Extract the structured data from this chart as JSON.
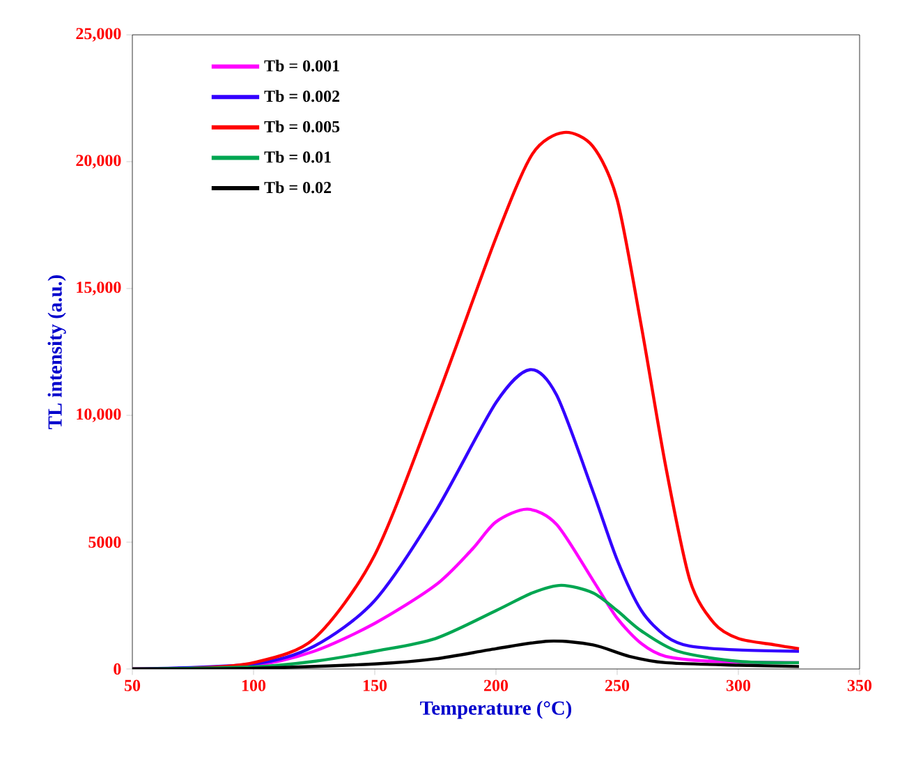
{
  "chart_data": {
    "type": "line",
    "xlabel": "Temperature (°C)",
    "ylabel": "TL intensity (a.u.)",
    "xlim": [
      50,
      350
    ],
    "ylim": [
      0,
      25000
    ],
    "xticks": [
      50,
      100,
      150,
      200,
      250,
      300,
      350
    ],
    "yticks": [
      0,
      5000,
      {
        "value": 10000,
        "label": "10,000"
      },
      {
        "value": 15000,
        "label": "15,000"
      },
      {
        "value": 20000,
        "label": "20,000"
      },
      {
        "value": 25000,
        "label": "25,000"
      }
    ],
    "legend": "top left",
    "grid": false,
    "marker": "none",
    "line_style": "solid",
    "series": [
      {
        "name": "Tb = 0.001",
        "color": "#ff00ff",
        "x": [
          50,
          100,
          125,
          150,
          175,
          190,
          200,
          213,
          225,
          240,
          250,
          260,
          270,
          290,
          325
        ],
        "values": [
          0,
          150,
          700,
          1800,
          3300,
          4700,
          5800,
          6300,
          5700,
          3500,
          2000,
          1000,
          500,
          300,
          250
        ]
      },
      {
        "name": "Tb = 0.002",
        "color": "#3300ff",
        "x": [
          50,
          100,
          125,
          150,
          175,
          200,
          214,
          225,
          240,
          250,
          260,
          270,
          280,
          300,
          325
        ],
        "values": [
          0,
          200,
          900,
          2700,
          6200,
          10500,
          11800,
          10800,
          7000,
          4300,
          2300,
          1300,
          900,
          750,
          700
        ]
      },
      {
        "name": "Tb = 0.005",
        "color": "#ff0000",
        "x": [
          50,
          75,
          100,
          125,
          150,
          175,
          200,
          215,
          228,
          240,
          250,
          260,
          270,
          280,
          290,
          300,
          315,
          325
        ],
        "values": [
          0,
          30,
          250,
          1200,
          4500,
          10500,
          17000,
          20300,
          21150,
          20600,
          18500,
          13500,
          8000,
          3500,
          1800,
          1200,
          950,
          800
        ]
      },
      {
        "name": "Tb = 0.01",
        "color": "#00a651",
        "x": [
          50,
          100,
          125,
          150,
          175,
          200,
          215,
          227,
          240,
          250,
          260,
          275,
          300,
          325
        ],
        "values": [
          0,
          80,
          300,
          700,
          1200,
          2300,
          3000,
          3300,
          3000,
          2300,
          1500,
          700,
          300,
          250
        ]
      },
      {
        "name": "Tb = 0.02",
        "color": "#000000",
        "x": [
          50,
          100,
          150,
          175,
          200,
          222,
          240,
          255,
          270,
          300,
          325
        ],
        "values": [
          0,
          30,
          200,
          400,
          800,
          1100,
          950,
          500,
          250,
          150,
          100
        ]
      }
    ]
  }
}
